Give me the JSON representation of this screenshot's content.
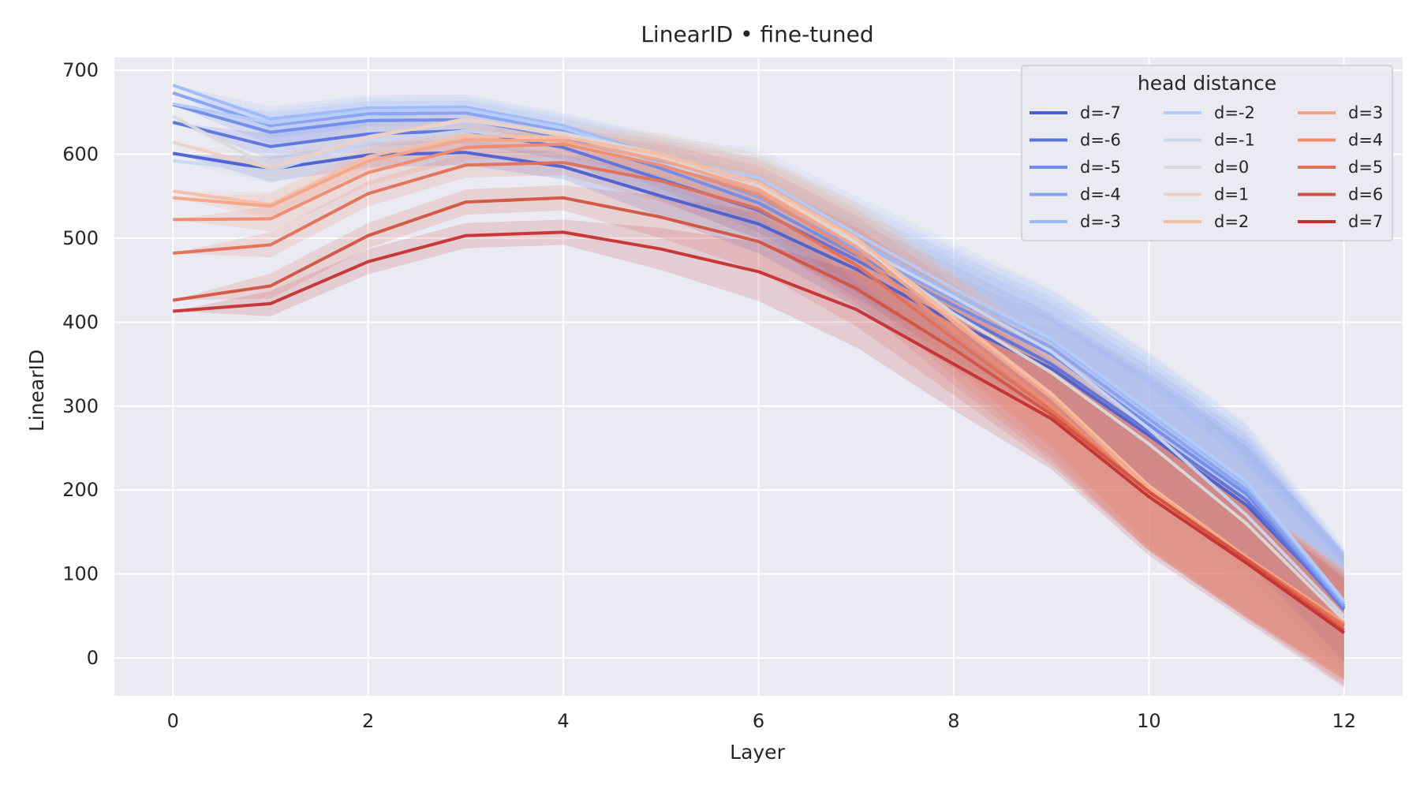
{
  "chart_data": {
    "type": "line",
    "title": "LinearID • fine-tuned",
    "xlabel": "Layer",
    "ylabel": "LinearID",
    "xlim": [
      -0.6,
      12.6
    ],
    "ylim": [
      -45,
      715
    ],
    "x_ticks": [
      0,
      2,
      4,
      6,
      8,
      10,
      12
    ],
    "y_ticks": [
      0,
      100,
      200,
      300,
      400,
      500,
      600,
      700
    ],
    "grid": true,
    "background": "#eaeaf2",
    "legend": {
      "title": "head distance",
      "placement": "top-right",
      "columns": 3
    },
    "x": [
      0,
      1,
      2,
      3,
      4,
      5,
      6,
      7,
      8,
      9,
      10,
      11,
      12
    ],
    "series": [
      {
        "name": "d=-7",
        "color": "#4a5fd0",
        "band": [
          0,
          15,
          15,
          15,
          15,
          25,
          35,
          45,
          55,
          60,
          70,
          70,
          65
        ],
        "values": [
          601,
          582,
          599,
          602,
          585,
          550,
          517,
          463,
          400,
          345,
          265,
          182,
          62
        ]
      },
      {
        "name": "d=-6",
        "color": "#5a73de",
        "band": [
          0,
          15,
          15,
          15,
          15,
          25,
          35,
          45,
          55,
          60,
          70,
          70,
          65
        ],
        "values": [
          638,
          609,
          624,
          628,
          608,
          570,
          533,
          474,
          412,
          350,
          270,
          188,
          58
        ]
      },
      {
        "name": "d=-5",
        "color": "#6f8be9",
        "band": [
          0,
          15,
          15,
          15,
          15,
          25,
          35,
          45,
          55,
          60,
          70,
          70,
          65
        ],
        "values": [
          659,
          626,
          640,
          641,
          620,
          583,
          542,
          480,
          420,
          362,
          278,
          195,
          60
        ]
      },
      {
        "name": "d=-4",
        "color": "#86a2f1",
        "band": [
          0,
          15,
          15,
          15,
          15,
          25,
          35,
          45,
          55,
          60,
          70,
          70,
          65
        ],
        "values": [
          673,
          634,
          648,
          649,
          628,
          590,
          549,
          487,
          427,
          370,
          285,
          200,
          62
        ]
      },
      {
        "name": "d=-3",
        "color": "#9dbaf8",
        "band": [
          0,
          15,
          15,
          15,
          15,
          25,
          35,
          45,
          55,
          60,
          70,
          70,
          65
        ],
        "values": [
          682,
          642,
          655,
          656,
          634,
          597,
          560,
          498,
          433,
          378,
          292,
          207,
          65
        ]
      },
      {
        "name": "d=-2",
        "color": "#b4cbf8",
        "band": [
          0,
          15,
          15,
          15,
          15,
          25,
          35,
          45,
          55,
          60,
          70,
          70,
          65
        ],
        "values": [
          660,
          637,
          652,
          653,
          631,
          595,
          572,
          505,
          440,
          380,
          295,
          210,
          68
        ]
      },
      {
        "name": "d=-1",
        "color": "#c9d6ee",
        "band": [
          0,
          15,
          15,
          15,
          15,
          25,
          35,
          45,
          55,
          60,
          70,
          70,
          65
        ],
        "values": [
          592,
          580,
          615,
          628,
          613,
          588,
          562,
          492,
          430,
          365,
          273,
          170,
          50
        ]
      },
      {
        "name": "d=0",
        "color": "#dadada",
        "band": [
          0,
          15,
          15,
          15,
          15,
          25,
          35,
          45,
          55,
          60,
          70,
          70,
          65
        ],
        "values": [
          645,
          584,
          621,
          640,
          625,
          600,
          565,
          495,
          410,
          340,
          255,
          160,
          45
        ]
      },
      {
        "name": "d=1",
        "color": "#ecd0c2",
        "band": [
          0,
          15,
          15,
          15,
          15,
          25,
          35,
          45,
          55,
          60,
          70,
          70,
          65
        ],
        "values": [
          614,
          583,
          620,
          642,
          622,
          596,
          560,
          498,
          400,
          312,
          200,
          120,
          40
        ]
      },
      {
        "name": "d=2",
        "color": "#f4bea4",
        "band": [
          0,
          15,
          15,
          15,
          15,
          25,
          35,
          45,
          55,
          60,
          70,
          70,
          65
        ],
        "values": [
          556,
          540,
          597,
          622,
          620,
          600,
          566,
          500,
          405,
          315,
          205,
          120,
          40
        ]
      },
      {
        "name": "d=3",
        "color": "#f5a486",
        "band": [
          0,
          15,
          15,
          15,
          15,
          25,
          35,
          45,
          55,
          60,
          70,
          70,
          65
        ],
        "values": [
          548,
          538,
          592,
          617,
          616,
          593,
          558,
          490,
          400,
          310,
          202,
          120,
          42
        ]
      },
      {
        "name": "d=4",
        "color": "#ef8a6c",
        "band": [
          0,
          15,
          15,
          15,
          15,
          25,
          35,
          45,
          55,
          60,
          70,
          70,
          65
        ],
        "values": [
          522,
          523,
          578,
          608,
          612,
          587,
          552,
          482,
          390,
          300,
          197,
          118,
          40
        ]
      },
      {
        "name": "d=5",
        "color": "#e36f55",
        "band": [
          0,
          15,
          15,
          15,
          15,
          25,
          35,
          45,
          55,
          60,
          70,
          70,
          65
        ],
        "values": [
          482,
          492,
          553,
          587,
          590,
          568,
          535,
          468,
          380,
          295,
          198,
          118,
          38
        ]
      },
      {
        "name": "d=6",
        "color": "#d2533f",
        "band": [
          0,
          15,
          15,
          15,
          15,
          25,
          35,
          45,
          55,
          60,
          70,
          70,
          65
        ],
        "values": [
          426,
          443,
          503,
          543,
          548,
          525,
          496,
          440,
          368,
          290,
          198,
          117,
          33
        ]
      },
      {
        "name": "d=7",
        "color": "#c4302f",
        "band": [
          0,
          15,
          15,
          15,
          15,
          25,
          35,
          45,
          55,
          60,
          70,
          70,
          65
        ],
        "values": [
          413,
          422,
          472,
          503,
          507,
          487,
          460,
          415,
          350,
          285,
          192,
          113,
          30
        ]
      }
    ]
  }
}
